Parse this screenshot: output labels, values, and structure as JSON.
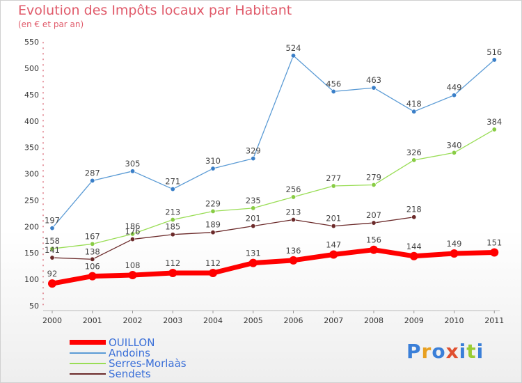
{
  "header": {
    "title": "Evolution des Impôts locaux par Habitant",
    "subtitle": "(en € et par an)"
  },
  "logo": {
    "text": "Proxiti"
  },
  "chart_data": {
    "type": "line",
    "title": "Evolution des Impôts locaux par Habitant",
    "subtitle": "(en € et par an)",
    "x": [
      "2000",
      "2001",
      "2002",
      "2003",
      "2004",
      "2005",
      "2006",
      "2007",
      "2008",
      "2009",
      "2010",
      "2011"
    ],
    "ylim": [
      50,
      550
    ],
    "yticks": [
      50,
      100,
      150,
      200,
      250,
      300,
      350,
      400,
      450,
      500,
      550
    ],
    "grid": false,
    "legend_position": "bottom-left",
    "series": [
      {
        "name": "OUILLON",
        "color": "#ff0000",
        "values": [
          92,
          106,
          108,
          112,
          112,
          131,
          136,
          147,
          156,
          144,
          149,
          151
        ]
      },
      {
        "name": "Andoins",
        "color": "#5b9bd5",
        "values": [
          197,
          287,
          305,
          271,
          310,
          329,
          524,
          456,
          463,
          418,
          449,
          516
        ]
      },
      {
        "name": "Serres-Morlaàs",
        "color": "#99dd55",
        "values": [
          158,
          167,
          186,
          213,
          229,
          235,
          256,
          277,
          279,
          326,
          340,
          384
        ]
      },
      {
        "name": "Sendets",
        "color": "#6b2a2a",
        "values": [
          141,
          138,
          176,
          185,
          189,
          201,
          213,
          201,
          207,
          218,
          null,
          null
        ]
      }
    ],
    "data_labels": [
      [
        "92",
        "106",
        "108",
        "112",
        "112",
        "131",
        "136",
        "147",
        "156",
        "144",
        "149",
        "151"
      ],
      [
        "197",
        "287",
        "305",
        "271",
        "310",
        "329",
        "524",
        "456",
        "463",
        "418",
        "449",
        "516"
      ],
      [
        "158",
        "167",
        "186",
        "213",
        "229",
        "235",
        "256",
        "277",
        "279",
        "326",
        "340",
        "384"
      ],
      [
        "141",
        "138",
        "176",
        "185",
        "189",
        "201",
        "213",
        "201",
        "207",
        "218",
        null,
        null
      ]
    ]
  }
}
